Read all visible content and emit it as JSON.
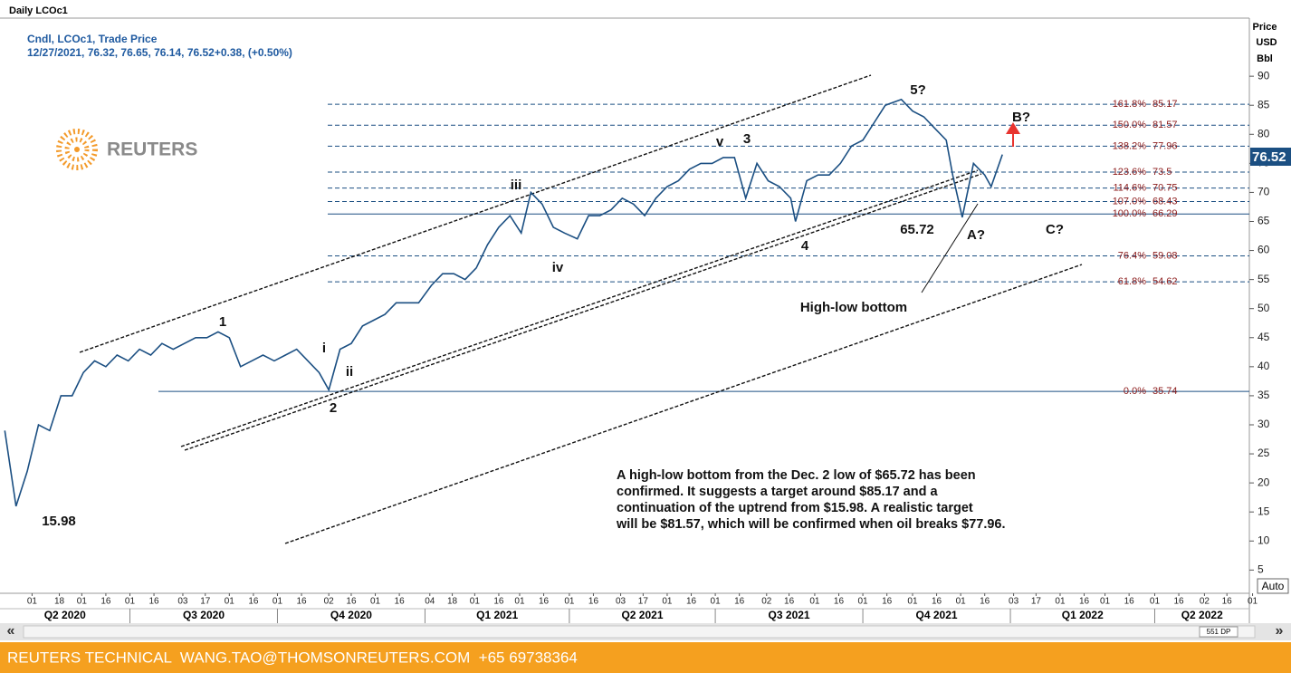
{
  "header": {
    "title": "Daily LCOc1",
    "legend_line1": "Cndl, LCOc1, Trade Price",
    "legend_line2": "12/27/2021, 76.32, 76.65, 76.14, 76.52+0.38, (+0.50%)",
    "logo": "REUTERS",
    "axis_unit": [
      "Price",
      "USD",
      "Bbl"
    ],
    "auto": "Auto",
    "scroll_label": "551 DP"
  },
  "footer": {
    "text": "REUTERS TECHNICAL  WANG.TAO@THOMSONREUTERS.COM  +65 69738364"
  },
  "chart_data": {
    "type": "line",
    "series": [
      {
        "name": "LCOc1",
        "color": "#1b4f82",
        "x": [
          "2020-04-14",
          "2020-04-21",
          "2020-04-28",
          "2020-05-05",
          "2020-05-12",
          "2020-05-19",
          "2020-05-26",
          "2020-06-02",
          "2020-06-09",
          "2020-06-16",
          "2020-06-23",
          "2020-06-30",
          "2020-07-07",
          "2020-07-14",
          "2020-07-21",
          "2020-07-28",
          "2020-08-04",
          "2020-08-11",
          "2020-08-18",
          "2020-08-25",
          "2020-09-01",
          "2020-09-08",
          "2020-09-15",
          "2020-09-22",
          "2020-09-29",
          "2020-10-06",
          "2020-10-13",
          "2020-10-20",
          "2020-10-27",
          "2020-11-02",
          "2020-11-09",
          "2020-11-16",
          "2020-11-23",
          "2020-11-30",
          "2020-12-07",
          "2020-12-14",
          "2020-12-21",
          "2020-12-28",
          "2021-01-05",
          "2021-01-12",
          "2021-01-19",
          "2021-01-26",
          "2021-02-02",
          "2021-02-09",
          "2021-02-16",
          "2021-02-23",
          "2021-03-02",
          "2021-03-08",
          "2021-03-15",
          "2021-03-22",
          "2021-03-29",
          "2021-04-06",
          "2021-04-13",
          "2021-04-20",
          "2021-04-27",
          "2021-05-04",
          "2021-05-11",
          "2021-05-18",
          "2021-05-25",
          "2021-06-01",
          "2021-06-08",
          "2021-06-15",
          "2021-06-22",
          "2021-06-29",
          "2021-07-06",
          "2021-07-13",
          "2021-07-20",
          "2021-07-27",
          "2021-08-03",
          "2021-08-10",
          "2021-08-17",
          "2021-08-20",
          "2021-08-27",
          "2021-09-03",
          "2021-09-10",
          "2021-09-17",
          "2021-09-24",
          "2021-10-01",
          "2021-10-08",
          "2021-10-15",
          "2021-10-25",
          "2021-11-01",
          "2021-11-08",
          "2021-11-15",
          "2021-11-22",
          "2021-11-26",
          "2021-12-02",
          "2021-12-09",
          "2021-12-16",
          "2021-12-20",
          "2021-12-27"
        ],
        "values": [
          29,
          15.98,
          22,
          30,
          29,
          35,
          35,
          39,
          41,
          40,
          42,
          41,
          43,
          42,
          44,
          43,
          44,
          45,
          45,
          46,
          45,
          40,
          41,
          42,
          41,
          42,
          43,
          41,
          39,
          36,
          43,
          44,
          47,
          48,
          49,
          51,
          51,
          51,
          54,
          56,
          56,
          55,
          57,
          61,
          64,
          66,
          63,
          70,
          68,
          64,
          63,
          62,
          66,
          66,
          67,
          69,
          68,
          66,
          69,
          71,
          72,
          74,
          75,
          75,
          76,
          76,
          69,
          75,
          72,
          71,
          69,
          65,
          72,
          73,
          73,
          75,
          78,
          79,
          82,
          85,
          86,
          84,
          83,
          81,
          79,
          73,
          65.72,
          75,
          73,
          71,
          76.52
        ]
      }
    ],
    "ylim": [
      1,
      100
    ],
    "yticks": [
      5,
      10,
      15,
      20,
      25,
      30,
      35,
      40,
      45,
      50,
      55,
      60,
      65,
      70,
      75,
      80,
      85,
      90
    ],
    "xlim": [
      "2020-04-11",
      "2022-05-30"
    ],
    "xticks": [
      {
        "value": "2020-05-01",
        "label": "01"
      },
      {
        "value": "2020-05-18",
        "label": "18"
      },
      {
        "value": "2020-06-01",
        "label": "01"
      },
      {
        "value": "2020-06-16",
        "label": "16"
      },
      {
        "value": "2020-07-01",
        "label": "01"
      },
      {
        "value": "2020-07-16",
        "label": "16"
      },
      {
        "value": "2020-08-03",
        "label": "03"
      },
      {
        "value": "2020-08-17",
        "label": "17"
      },
      {
        "value": "2020-09-01",
        "label": "01"
      },
      {
        "value": "2020-09-16",
        "label": "16"
      },
      {
        "value": "2020-10-01",
        "label": "01"
      },
      {
        "value": "2020-10-16",
        "label": "16"
      },
      {
        "value": "2020-11-02",
        "label": "02"
      },
      {
        "value": "2020-11-16",
        "label": "16"
      },
      {
        "value": "2020-12-01",
        "label": "01"
      },
      {
        "value": "2020-12-16",
        "label": "16"
      },
      {
        "value": "2021-01-04",
        "label": "04"
      },
      {
        "value": "2021-01-18",
        "label": "18"
      },
      {
        "value": "2021-02-01",
        "label": "01"
      },
      {
        "value": "2021-02-16",
        "label": "16"
      },
      {
        "value": "2021-03-01",
        "label": "01"
      },
      {
        "value": "2021-03-16",
        "label": "16"
      },
      {
        "value": "2021-04-01",
        "label": "01"
      },
      {
        "value": "2021-04-16",
        "label": "16"
      },
      {
        "value": "2021-05-03",
        "label": "03"
      },
      {
        "value": "2021-05-17",
        "label": "17"
      },
      {
        "value": "2021-06-01",
        "label": "01"
      },
      {
        "value": "2021-06-16",
        "label": "16"
      },
      {
        "value": "2021-07-01",
        "label": "01"
      },
      {
        "value": "2021-07-16",
        "label": "16"
      },
      {
        "value": "2021-08-02",
        "label": "02"
      },
      {
        "value": "2021-08-16",
        "label": "16"
      },
      {
        "value": "2021-09-01",
        "label": "01"
      },
      {
        "value": "2021-09-16",
        "label": "16"
      },
      {
        "value": "2021-10-01",
        "label": "01"
      },
      {
        "value": "2021-10-16",
        "label": "16"
      },
      {
        "value": "2021-11-01",
        "label": "01"
      },
      {
        "value": "2021-11-16",
        "label": "16"
      },
      {
        "value": "2021-12-01",
        "label": "01"
      },
      {
        "value": "2021-12-16",
        "label": "16"
      },
      {
        "value": "2022-01-03",
        "label": "03"
      },
      {
        "value": "2022-01-17",
        "label": "17"
      },
      {
        "value": "2022-02-01",
        "label": "01"
      },
      {
        "value": "2022-02-16",
        "label": "16"
      },
      {
        "value": "2022-03-01",
        "label": "01"
      },
      {
        "value": "2022-03-16",
        "label": "16"
      },
      {
        "value": "2022-04-01",
        "label": "01"
      },
      {
        "value": "2022-04-16",
        "label": "16"
      },
      {
        "value": "2022-05-02",
        "label": "02"
      },
      {
        "value": "2022-05-16",
        "label": "16"
      },
      {
        "value": "2022-06-01",
        "label": "01"
      }
    ],
    "quarters": [
      {
        "value": "2020-04-01",
        "label": "Q2 2020"
      },
      {
        "value": "2020-07-01",
        "label": "Q3 2020"
      },
      {
        "value": "2020-10-01",
        "label": "Q4 2020"
      },
      {
        "value": "2021-01-01",
        "label": "Q1 2021"
      },
      {
        "value": "2021-04-01",
        "label": "Q2 2021"
      },
      {
        "value": "2021-07-01",
        "label": "Q3 2021"
      },
      {
        "value": "2021-10-01",
        "label": "Q4 2021"
      },
      {
        "value": "2022-01-01",
        "label": "Q1 2022"
      },
      {
        "value": "2022-04-01",
        "label": "Q2 2022"
      }
    ],
    "fib_levels": [
      {
        "label": "161.8%",
        "value": 85.17,
        "style": "dashed"
      },
      {
        "label": "150.0%",
        "value": 81.57,
        "style": "dashed"
      },
      {
        "label": "138.2%",
        "value": 77.96,
        "style": "dashed"
      },
      {
        "label": "123.6%",
        "value": 73.5,
        "style": "dashed"
      },
      {
        "label": "114.6%",
        "value": 70.75,
        "style": "dashed"
      },
      {
        "label": "107.0%",
        "value": 68.43,
        "style": "dashed"
      },
      {
        "label": "100.0%",
        "value": 66.29,
        "style": "solid"
      },
      {
        "label": "76.4%",
        "value": 59.08,
        "style": "dashed"
      },
      {
        "label": "61.8%",
        "value": 54.62,
        "style": "dashed"
      },
      {
        "label": "0.0%",
        "value": 35.74,
        "style": "solid"
      }
    ],
    "annotations": [
      "1",
      "2",
      "i",
      "ii",
      "iii",
      "iv",
      "v",
      "3",
      "4",
      "5?",
      "B?",
      "A?",
      "C?",
      "High-low bottom"
    ],
    "note_lines": [
      "A high-low bottom from the Dec. 2 low of $65.72 has been",
      "confirmed. It suggests a target around $85.17 and a",
      "continuation of the uptrend from $15.98.   A realistic target",
      "will be $81.57, which will be confirmed when oil breaks $77.96."
    ]
  }
}
